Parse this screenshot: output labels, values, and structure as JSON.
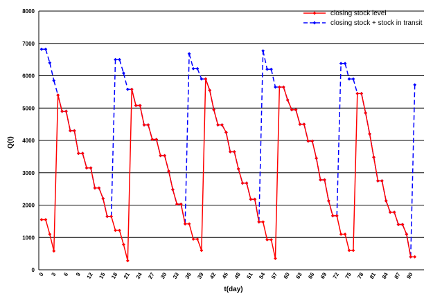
{
  "chart_data": {
    "type": "line",
    "xlabel": "t(day)",
    "ylabel": "Q(t)",
    "ylim": [
      0,
      8000
    ],
    "yticks": [
      0,
      1000,
      2000,
      3000,
      4000,
      5000,
      6000,
      7000,
      8000
    ],
    "xlim": [
      0,
      90
    ],
    "xticks": [
      0,
      3,
      6,
      9,
      12,
      15,
      18,
      21,
      24,
      27,
      30,
      33,
      36,
      39,
      42,
      45,
      48,
      51,
      54,
      57,
      60,
      63,
      66,
      69,
      72,
      75,
      78,
      81,
      84,
      87,
      90
    ],
    "grid": "horizontal",
    "legend_position": "top-right",
    "colors": {
      "closing": "#ff0000",
      "transit": "#0000ff",
      "grid": "#000000"
    },
    "series": [
      {
        "name": "closing stock level",
        "color": "#ff0000",
        "style": "solid",
        "points": [
          [
            0,
            1550
          ],
          [
            1,
            1550
          ],
          [
            2,
            1100
          ],
          [
            3,
            580
          ],
          [
            4,
            5400
          ],
          [
            5,
            4900
          ],
          [
            6,
            4900
          ],
          [
            7,
            4300
          ],
          [
            8,
            4300
          ],
          [
            9,
            3600
          ],
          [
            10,
            3600
          ],
          [
            11,
            3150
          ],
          [
            12,
            3150
          ],
          [
            13,
            2530
          ],
          [
            14,
            2530
          ],
          [
            15,
            2200
          ],
          [
            16,
            1650
          ],
          [
            17,
            1650
          ],
          [
            18,
            1220
          ],
          [
            19,
            1220
          ],
          [
            20,
            780
          ],
          [
            21,
            280
          ],
          [
            22,
            5580
          ],
          [
            23,
            5080
          ],
          [
            24,
            5080
          ],
          [
            25,
            4480
          ],
          [
            26,
            4480
          ],
          [
            27,
            4030
          ],
          [
            28,
            4030
          ],
          [
            29,
            3530
          ],
          [
            30,
            3530
          ],
          [
            31,
            3050
          ],
          [
            32,
            2480
          ],
          [
            33,
            2030
          ],
          [
            34,
            2030
          ],
          [
            35,
            1420
          ],
          [
            36,
            1420
          ],
          [
            37,
            950
          ],
          [
            38,
            950
          ],
          [
            39,
            600
          ],
          [
            40,
            5900
          ],
          [
            41,
            5550
          ],
          [
            42,
            4950
          ],
          [
            43,
            4480
          ],
          [
            44,
            4480
          ],
          [
            45,
            4250
          ],
          [
            46,
            3650
          ],
          [
            47,
            3650
          ],
          [
            48,
            3120
          ],
          [
            49,
            2680
          ],
          [
            50,
            2680
          ],
          [
            51,
            2180
          ],
          [
            52,
            2180
          ],
          [
            53,
            1480
          ],
          [
            54,
            1480
          ],
          [
            55,
            930
          ],
          [
            56,
            930
          ],
          [
            57,
            350
          ],
          [
            58,
            5650
          ],
          [
            59,
            5650
          ],
          [
            60,
            5250
          ],
          [
            61,
            4950
          ],
          [
            62,
            4950
          ],
          [
            63,
            4500
          ],
          [
            64,
            4500
          ],
          [
            65,
            3980
          ],
          [
            66,
            3980
          ],
          [
            67,
            3450
          ],
          [
            68,
            2780
          ],
          [
            69,
            2780
          ],
          [
            70,
            2130
          ],
          [
            71,
            1670
          ],
          [
            72,
            1670
          ],
          [
            73,
            1100
          ],
          [
            74,
            1100
          ],
          [
            75,
            600
          ],
          [
            76,
            600
          ],
          [
            77,
            5450
          ],
          [
            78,
            5450
          ],
          [
            79,
            4850
          ],
          [
            80,
            4200
          ],
          [
            81,
            3480
          ],
          [
            82,
            2750
          ],
          [
            83,
            2750
          ],
          [
            84,
            2130
          ],
          [
            85,
            1780
          ],
          [
            86,
            1780
          ],
          [
            87,
            1400
          ],
          [
            88,
            1400
          ],
          [
            89,
            1100
          ],
          [
            90,
            400
          ],
          [
            91,
            400
          ]
        ]
      },
      {
        "name": "closing stock + stock in transit",
        "color": "#0000ff",
        "style": "dashed",
        "points": [
          [
            0,
            6820
          ],
          [
            1,
            6820
          ],
          [
            2,
            6400
          ],
          [
            3,
            5850
          ],
          [
            4,
            5400
          ],
          [
            5,
            4900
          ],
          [
            6,
            4900
          ],
          [
            7,
            4300
          ],
          [
            8,
            4300
          ],
          [
            9,
            3600
          ],
          [
            10,
            3600
          ],
          [
            11,
            3150
          ],
          [
            12,
            3150
          ],
          [
            13,
            2530
          ],
          [
            14,
            2530
          ],
          [
            15,
            2200
          ],
          [
            16,
            1650
          ],
          [
            17,
            1650
          ],
          [
            18,
            6500
          ],
          [
            19,
            6500
          ],
          [
            20,
            6080
          ],
          [
            21,
            5580
          ],
          [
            22,
            5580
          ],
          [
            23,
            5080
          ],
          [
            24,
            5080
          ],
          [
            25,
            4480
          ],
          [
            26,
            4480
          ],
          [
            27,
            4030
          ],
          [
            28,
            4030
          ],
          [
            29,
            3530
          ],
          [
            30,
            3530
          ],
          [
            31,
            3050
          ],
          [
            32,
            2480
          ],
          [
            33,
            2030
          ],
          [
            34,
            2030
          ],
          [
            35,
            1420
          ],
          [
            36,
            6680
          ],
          [
            37,
            6220
          ],
          [
            38,
            6220
          ],
          [
            39,
            5900
          ],
          [
            40,
            5900
          ],
          [
            41,
            5550
          ],
          [
            42,
            4950
          ],
          [
            43,
            4480
          ],
          [
            44,
            4480
          ],
          [
            45,
            4250
          ],
          [
            46,
            3650
          ],
          [
            47,
            3650
          ],
          [
            48,
            3120
          ],
          [
            49,
            2680
          ],
          [
            50,
            2680
          ],
          [
            51,
            2180
          ],
          [
            52,
            2180
          ],
          [
            53,
            1480
          ],
          [
            54,
            6770
          ],
          [
            55,
            6200
          ],
          [
            56,
            6200
          ],
          [
            57,
            5650
          ],
          [
            58,
            5650
          ],
          [
            59,
            5650
          ],
          [
            60,
            5250
          ],
          [
            61,
            4950
          ],
          [
            62,
            4950
          ],
          [
            63,
            4500
          ],
          [
            64,
            4500
          ],
          [
            65,
            3980
          ],
          [
            66,
            3980
          ],
          [
            67,
            3450
          ],
          [
            68,
            2780
          ],
          [
            69,
            2780
          ],
          [
            70,
            2130
          ],
          [
            71,
            1670
          ],
          [
            72,
            1670
          ],
          [
            73,
            6380
          ],
          [
            74,
            6380
          ],
          [
            75,
            5900
          ],
          [
            76,
            5900
          ],
          [
            77,
            5450
          ],
          [
            78,
            5450
          ],
          [
            79,
            4850
          ],
          [
            80,
            4200
          ],
          [
            81,
            3480
          ],
          [
            82,
            2750
          ],
          [
            83,
            2750
          ],
          [
            84,
            2130
          ],
          [
            85,
            1780
          ],
          [
            86,
            1780
          ],
          [
            87,
            1400
          ],
          [
            88,
            1400
          ],
          [
            89,
            1100
          ],
          [
            90,
            400
          ],
          [
            91,
            5720
          ]
        ]
      }
    ]
  }
}
